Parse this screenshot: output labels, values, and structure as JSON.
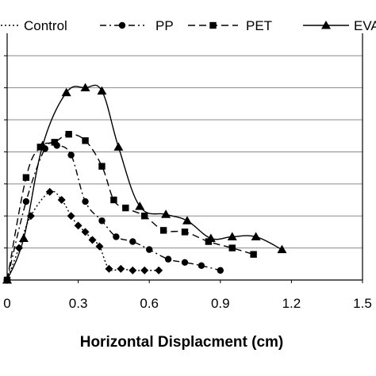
{
  "chart_data": {
    "type": "line",
    "xlabel": "Horizontal Displacment (cm)",
    "ylabel": "",
    "xlim": [
      0,
      1.5
    ],
    "ylim": [
      0,
      7.7
    ],
    "x_ticks": [
      "0",
      "0.3",
      "0.6",
      "0.9",
      "1.2",
      "1.5"
    ],
    "x_tick_values": [
      0,
      0.3,
      0.6,
      0.9,
      1.2,
      1.5
    ],
    "y_gridlines": [
      1,
      2,
      3,
      4,
      5,
      6,
      7
    ],
    "grid": "horizontal",
    "legend_position": "top",
    "series": [
      {
        "name": "Control",
        "marker": "diamond",
        "dash": "dotted",
        "color": "#000000",
        "x": [
          0,
          0.05,
          0.1,
          0.18,
          0.23,
          0.27,
          0.3,
          0.33,
          0.36,
          0.39,
          0.43,
          0.48,
          0.53,
          0.58,
          0.64
        ],
        "y": [
          0,
          1.0,
          2.0,
          2.75,
          2.5,
          2.0,
          1.7,
          1.5,
          1.25,
          1.05,
          0.35,
          0.35,
          0.3,
          0.3,
          0.3
        ]
      },
      {
        "name": "PP",
        "marker": "circle",
        "dash": "dash-dot",
        "color": "#000000",
        "x": [
          0,
          0.08,
          0.16,
          0.21,
          0.27,
          0.33,
          0.4,
          0.46,
          0.53,
          0.6,
          0.68,
          0.75,
          0.82,
          0.9
        ],
        "y": [
          0,
          2.45,
          4.1,
          4.2,
          3.9,
          2.45,
          1.85,
          1.35,
          1.2,
          0.95,
          0.65,
          0.55,
          0.45,
          0.3
        ]
      },
      {
        "name": "PET",
        "marker": "square",
        "dash": "dashed",
        "color": "#000000",
        "x": [
          0,
          0.08,
          0.14,
          0.2,
          0.26,
          0.33,
          0.4,
          0.45,
          0.5,
          0.58,
          0.66,
          0.75,
          0.85,
          0.95,
          1.04
        ],
        "y": [
          0,
          3.2,
          4.15,
          4.3,
          4.55,
          4.35,
          3.55,
          2.5,
          2.25,
          2.0,
          1.55,
          1.5,
          1.2,
          1.0,
          0.8
        ]
      },
      {
        "name": "EVA",
        "marker": "triangle",
        "dash": "solid",
        "color": "#000000",
        "x": [
          0,
          0.07,
          0.15,
          0.25,
          0.33,
          0.4,
          0.47,
          0.56,
          0.67,
          0.76,
          0.86,
          0.95,
          1.05,
          1.16
        ],
        "y": [
          0,
          1.3,
          4.2,
          5.85,
          6.0,
          5.9,
          4.15,
          2.3,
          2.05,
          1.85,
          1.3,
          1.35,
          1.35,
          0.95
        ]
      }
    ]
  }
}
